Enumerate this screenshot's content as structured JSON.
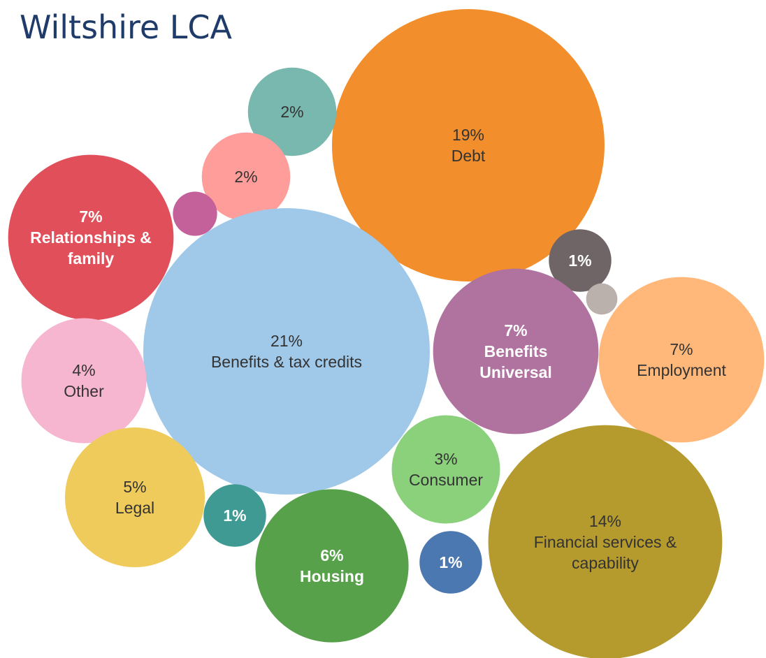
{
  "chart_data": {
    "type": "bubble",
    "title": "Wiltshire LCA",
    "categories": [
      "Debt",
      null,
      null,
      null,
      "Relationships & family",
      "Benefits & tax credits",
      null,
      null,
      "Benefits Universal",
      "Employment",
      "Other",
      "Consumer",
      "Legal",
      null,
      "Housing",
      null,
      "Financial services & capability"
    ],
    "values": [
      19,
      2,
      2,
      0.5,
      7,
      21,
      1,
      0.25,
      7,
      7,
      4,
      3,
      5,
      1,
      6,
      1,
      14
    ],
    "value_labels": [
      "19%",
      "2%",
      "2%",
      null,
      "7%",
      "21%",
      "1%",
      null,
      "7%",
      "7%",
      "4%",
      "3%",
      "5%",
      "1%",
      "6%",
      "1%",
      "14%"
    ],
    "colors": [
      "#f28e2b",
      "#79b8ae",
      "#ff9d9a",
      "#c4609a",
      "#e1505a",
      "#a0c8e8",
      "#6f6566",
      "#bab0ac",
      "#b0739f",
      "#ffb87a",
      "#f7b6cf",
      "#8bd17c",
      "#efcb5c",
      "#3f9a94",
      "#57a14b",
      "#4b78b0",
      "#b59a2e"
    ]
  }
}
